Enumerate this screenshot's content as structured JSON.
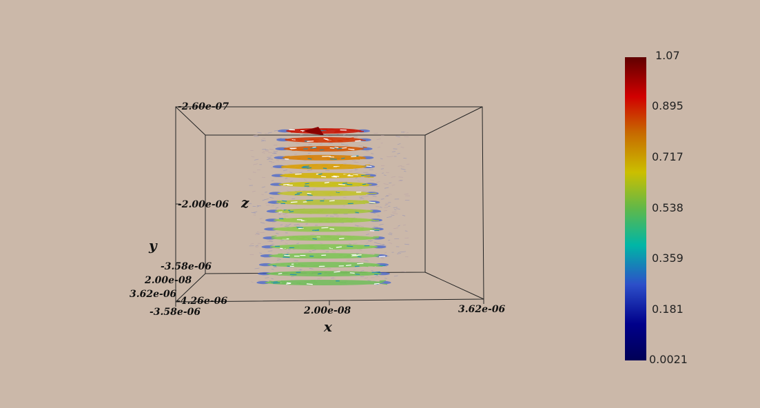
{
  "axes": {
    "x_title": "x",
    "y_title": "y",
    "z_title": "z",
    "x_ticks": {
      "min": "-3.58e-06",
      "mid": "2.00e-08",
      "max": "3.62e-06"
    },
    "y_ticks": {
      "min": "-3.58e-06",
      "mid": "2.00e-08",
      "max": "3.62e-06"
    },
    "z_ticks": {
      "top": "-2.60e-07",
      "mid": "-2.00e-06",
      "bottom": "-4.26e-06"
    },
    "y_top_tick": "-3.58e-06"
  },
  "colorbar": {
    "labels": [
      "1.07",
      "0.895",
      "0.717",
      "0.538",
      "0.359",
      "0.181",
      "0.0021"
    ],
    "min": 0.0021,
    "max": 1.07,
    "colormap": "jet",
    "colors": [
      "#600000",
      "#d10000",
      "#c76a00",
      "#cbbf00",
      "#5fb84a",
      "#00b6a6",
      "#2c4fc9",
      "#00008a",
      "#000056"
    ]
  },
  "glyph_layers": 18,
  "background": "#cbb8a9"
}
